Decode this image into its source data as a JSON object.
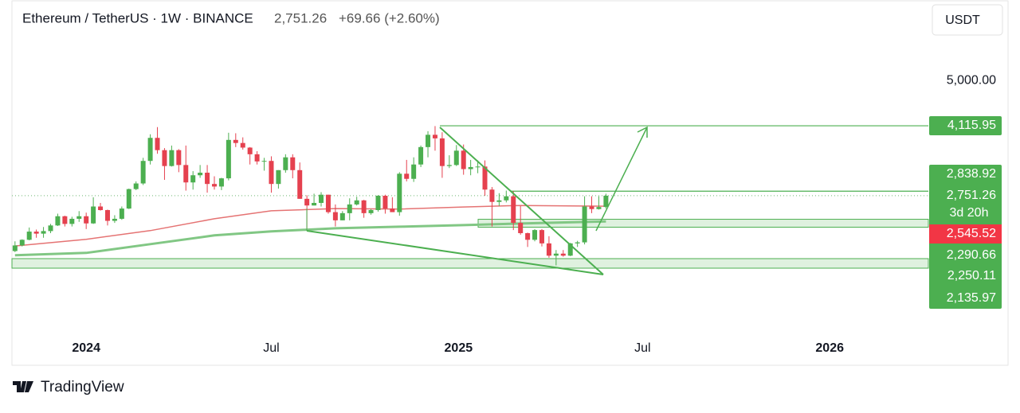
{
  "header": {
    "symbol": "Ethereum / TetherUS · 1W · BINANCE",
    "last": "2,751.26",
    "change": "+69.66 (+2.60%)",
    "currency_button": "USDT"
  },
  "footer": {
    "brand": "TradingView"
  },
  "chart_data": {
    "type": "candlestick",
    "up_color": "#4caf50",
    "down_color": "#e5414f",
    "xlim": [
      "2023-10-20",
      "2026-04-08"
    ],
    "xticks": [
      {
        "value": "2024-01-01",
        "label": "2024"
      },
      {
        "value": "2024-07-01",
        "label": "Jul"
      },
      {
        "value": "2025-01-01",
        "label": "2025"
      },
      {
        "value": "2025-07-01",
        "label": "Jul"
      },
      {
        "value": "2026-01-01",
        "label": "2026"
      }
    ],
    "ylim": [
      0,
      5950
    ],
    "yticks": [
      {
        "value": 5000,
        "label": "5,000.00"
      }
    ],
    "x": [
      "2023-10-23",
      "2023-10-30",
      "2023-11-06",
      "2023-11-13",
      "2023-11-20",
      "2023-11-27",
      "2023-12-04",
      "2023-12-11",
      "2023-12-18",
      "2023-12-25",
      "2024-01-01",
      "2024-01-08",
      "2024-01-15",
      "2024-01-22",
      "2024-01-29",
      "2024-02-05",
      "2024-02-12",
      "2024-02-19",
      "2024-02-26",
      "2024-03-04",
      "2024-03-11",
      "2024-03-18",
      "2024-03-25",
      "2024-04-01",
      "2024-04-08",
      "2024-04-15",
      "2024-04-22",
      "2024-04-29",
      "2024-05-06",
      "2024-05-13",
      "2024-05-20",
      "2024-05-27",
      "2024-06-03",
      "2024-06-10",
      "2024-06-17",
      "2024-06-24",
      "2024-07-01",
      "2024-07-08",
      "2024-07-15",
      "2024-07-22",
      "2024-07-29",
      "2024-08-05",
      "2024-08-12",
      "2024-08-19",
      "2024-08-26",
      "2024-09-02",
      "2024-09-09",
      "2024-09-16",
      "2024-09-23",
      "2024-09-30",
      "2024-10-07",
      "2024-10-14",
      "2024-10-21",
      "2024-10-28",
      "2024-11-04",
      "2024-11-11",
      "2024-11-18",
      "2024-11-25",
      "2024-12-02",
      "2024-12-09",
      "2024-12-16",
      "2024-12-23",
      "2024-12-30",
      "2025-01-06",
      "2025-01-13",
      "2025-01-20",
      "2025-01-27",
      "2025-02-03",
      "2025-02-10",
      "2025-02-17",
      "2025-02-24",
      "2025-03-03",
      "2025-03-10",
      "2025-03-17",
      "2025-03-24",
      "2025-03-31",
      "2025-04-07",
      "2025-04-14",
      "2025-04-21",
      "2025-04-28",
      "2025-05-05",
      "2025-05-12",
      "2025-05-19",
      "2025-05-26"
    ],
    "open": [
      1670,
      1780,
      1890,
      2050,
      2010,
      2060,
      2170,
      2350,
      2200,
      2300,
      2350,
      2210,
      2540,
      2470,
      2260,
      2300,
      2500,
      2880,
      2990,
      3430,
      3880,
      3640,
      3330,
      3640,
      3350,
      3010,
      3150,
      3200,
      2980,
      2930,
      3090,
      3840,
      3780,
      3690,
      3560,
      3420,
      3430,
      2980,
      3250,
      3500,
      3250,
      2690,
      2560,
      2610,
      2770,
      2430,
      2270,
      2410,
      2580,
      2660,
      2410,
      2470,
      2750,
      2500,
      2430,
      3180,
      3080,
      3360,
      3700,
      3940,
      3870,
      3330,
      3350,
      3630,
      3270,
      3310,
      3320,
      2870,
      2630,
      2660,
      2740,
      2220,
      2020,
      1890,
      2080,
      1820,
      1580,
      1620,
      1580,
      1820,
      1840,
      2540,
      2490,
      2530
    ],
    "high": [
      1860,
      1900,
      2130,
      2090,
      2140,
      2200,
      2400,
      2360,
      2340,
      2450,
      2420,
      2720,
      2610,
      2480,
      2370,
      2540,
      2890,
      3030,
      3490,
      3950,
      4090,
      3680,
      3730,
      3660,
      3730,
      3230,
      3350,
      3350,
      3130,
      3100,
      3980,
      3970,
      3890,
      3700,
      3620,
      3490,
      3520,
      3250,
      3560,
      3560,
      3400,
      2760,
      2790,
      2820,
      2770,
      2580,
      2450,
      2700,
      2730,
      2670,
      2490,
      2760,
      2770,
      2720,
      3210,
      3450,
      3500,
      3730,
      4010,
      4110,
      3990,
      3540,
      3740,
      3750,
      3450,
      3440,
      3440,
      2920,
      2800,
      2850,
      2840,
      2550,
      2030,
      2100,
      2100,
      1960,
      1690,
      1690,
      1830,
      1870,
      2740,
      2740,
      2740,
      2790
    ],
    "low": [
      1650,
      1760,
      1880,
      1930,
      1930,
      2020,
      2160,
      2150,
      2150,
      2240,
      2100,
      2200,
      2460,
      2170,
      2220,
      2280,
      2490,
      2860,
      2960,
      3360,
      3570,
      3060,
      3320,
      3210,
      2850,
      2870,
      3100,
      2810,
      2870,
      2860,
      3050,
      3700,
      3650,
      3360,
      3360,
      3240,
      2810,
      2890,
      3200,
      3090,
      2690,
      2110,
      2560,
      2540,
      2400,
      2150,
      2270,
      2270,
      2560,
      2320,
      2380,
      2440,
      2400,
      2440,
      2360,
      3030,
      3020,
      3310,
      3500,
      3630,
      3100,
      3290,
      3330,
      3160,
      3150,
      3190,
      2750,
      2150,
      2550,
      2620,
      2080,
      1990,
      1750,
      1860,
      1760,
      1540,
      1390,
      1560,
      1570,
      1750,
      1800,
      2410,
      2480,
      2500
    ],
    "close": [
      1780,
      1890,
      2050,
      2010,
      2060,
      2170,
      2350,
      2200,
      2300,
      2350,
      2210,
      2540,
      2470,
      2260,
      2300,
      2500,
      2880,
      2990,
      3430,
      3880,
      3640,
      3330,
      3640,
      3350,
      3010,
      3150,
      3200,
      2980,
      2930,
      3090,
      3840,
      3780,
      3690,
      3560,
      3420,
      3430,
      2980,
      3250,
      3500,
      3250,
      2690,
      2560,
      2610,
      2770,
      2430,
      2270,
      2410,
      2580,
      2660,
      2410,
      2470,
      2750,
      2500,
      2430,
      3180,
      3080,
      3360,
      3700,
      3940,
      3870,
      3330,
      3350,
      3630,
      3270,
      3310,
      3320,
      2870,
      2630,
      2660,
      2740,
      2220,
      2020,
      1890,
      2080,
      1820,
      1580,
      1620,
      1580,
      1820,
      1840,
      2540,
      2490,
      2530,
      2751.26
    ],
    "ma_lines": [
      {
        "color": "#e57373",
        "x": [
          "2023-10-23",
          "2024-01-01",
          "2024-03-04",
          "2024-05-06",
          "2024-07-01",
          "2024-09-02",
          "2024-11-04",
          "2025-01-06",
          "2025-03-03",
          "2025-05-26"
        ],
        "values": [
          1770,
          1900,
          2070,
          2300,
          2456,
          2500,
          2490,
          2530,
          2560,
          2545.52
        ]
      },
      {
        "color": "#81c784",
        "x": [
          "2023-10-23",
          "2024-01-01",
          "2024-03-04",
          "2024-05-06",
          "2024-07-01",
          "2024-09-02",
          "2024-11-04",
          "2025-01-06",
          "2025-03-03",
          "2025-05-26"
        ],
        "values": [
          1588,
          1635,
          1805,
          1976,
          2053,
          2115,
          2146,
          2177,
          2208,
          2250.11
        ]
      }
    ],
    "price_labels": [
      {
        "value": 4115.95,
        "label": "4,115.95",
        "color": "#4caf50"
      },
      {
        "value": 2838.92,
        "label": "2,838.92",
        "color": "#4caf50"
      },
      {
        "value": 2751.26,
        "label": "2,751.26",
        "color": "#4caf50"
      },
      {
        "value": 2545.52,
        "label": "2,545.52",
        "color": "#f23645"
      },
      {
        "value": 2290.66,
        "label": "2,290.66",
        "color": "#4caf50"
      },
      {
        "value": 2250.11,
        "label": "2,250.11",
        "color": "#4caf50"
      },
      {
        "value": 2135.97,
        "label": "2,135.97",
        "color": "#4caf50"
      }
    ],
    "countdown": "3d 20h"
  }
}
